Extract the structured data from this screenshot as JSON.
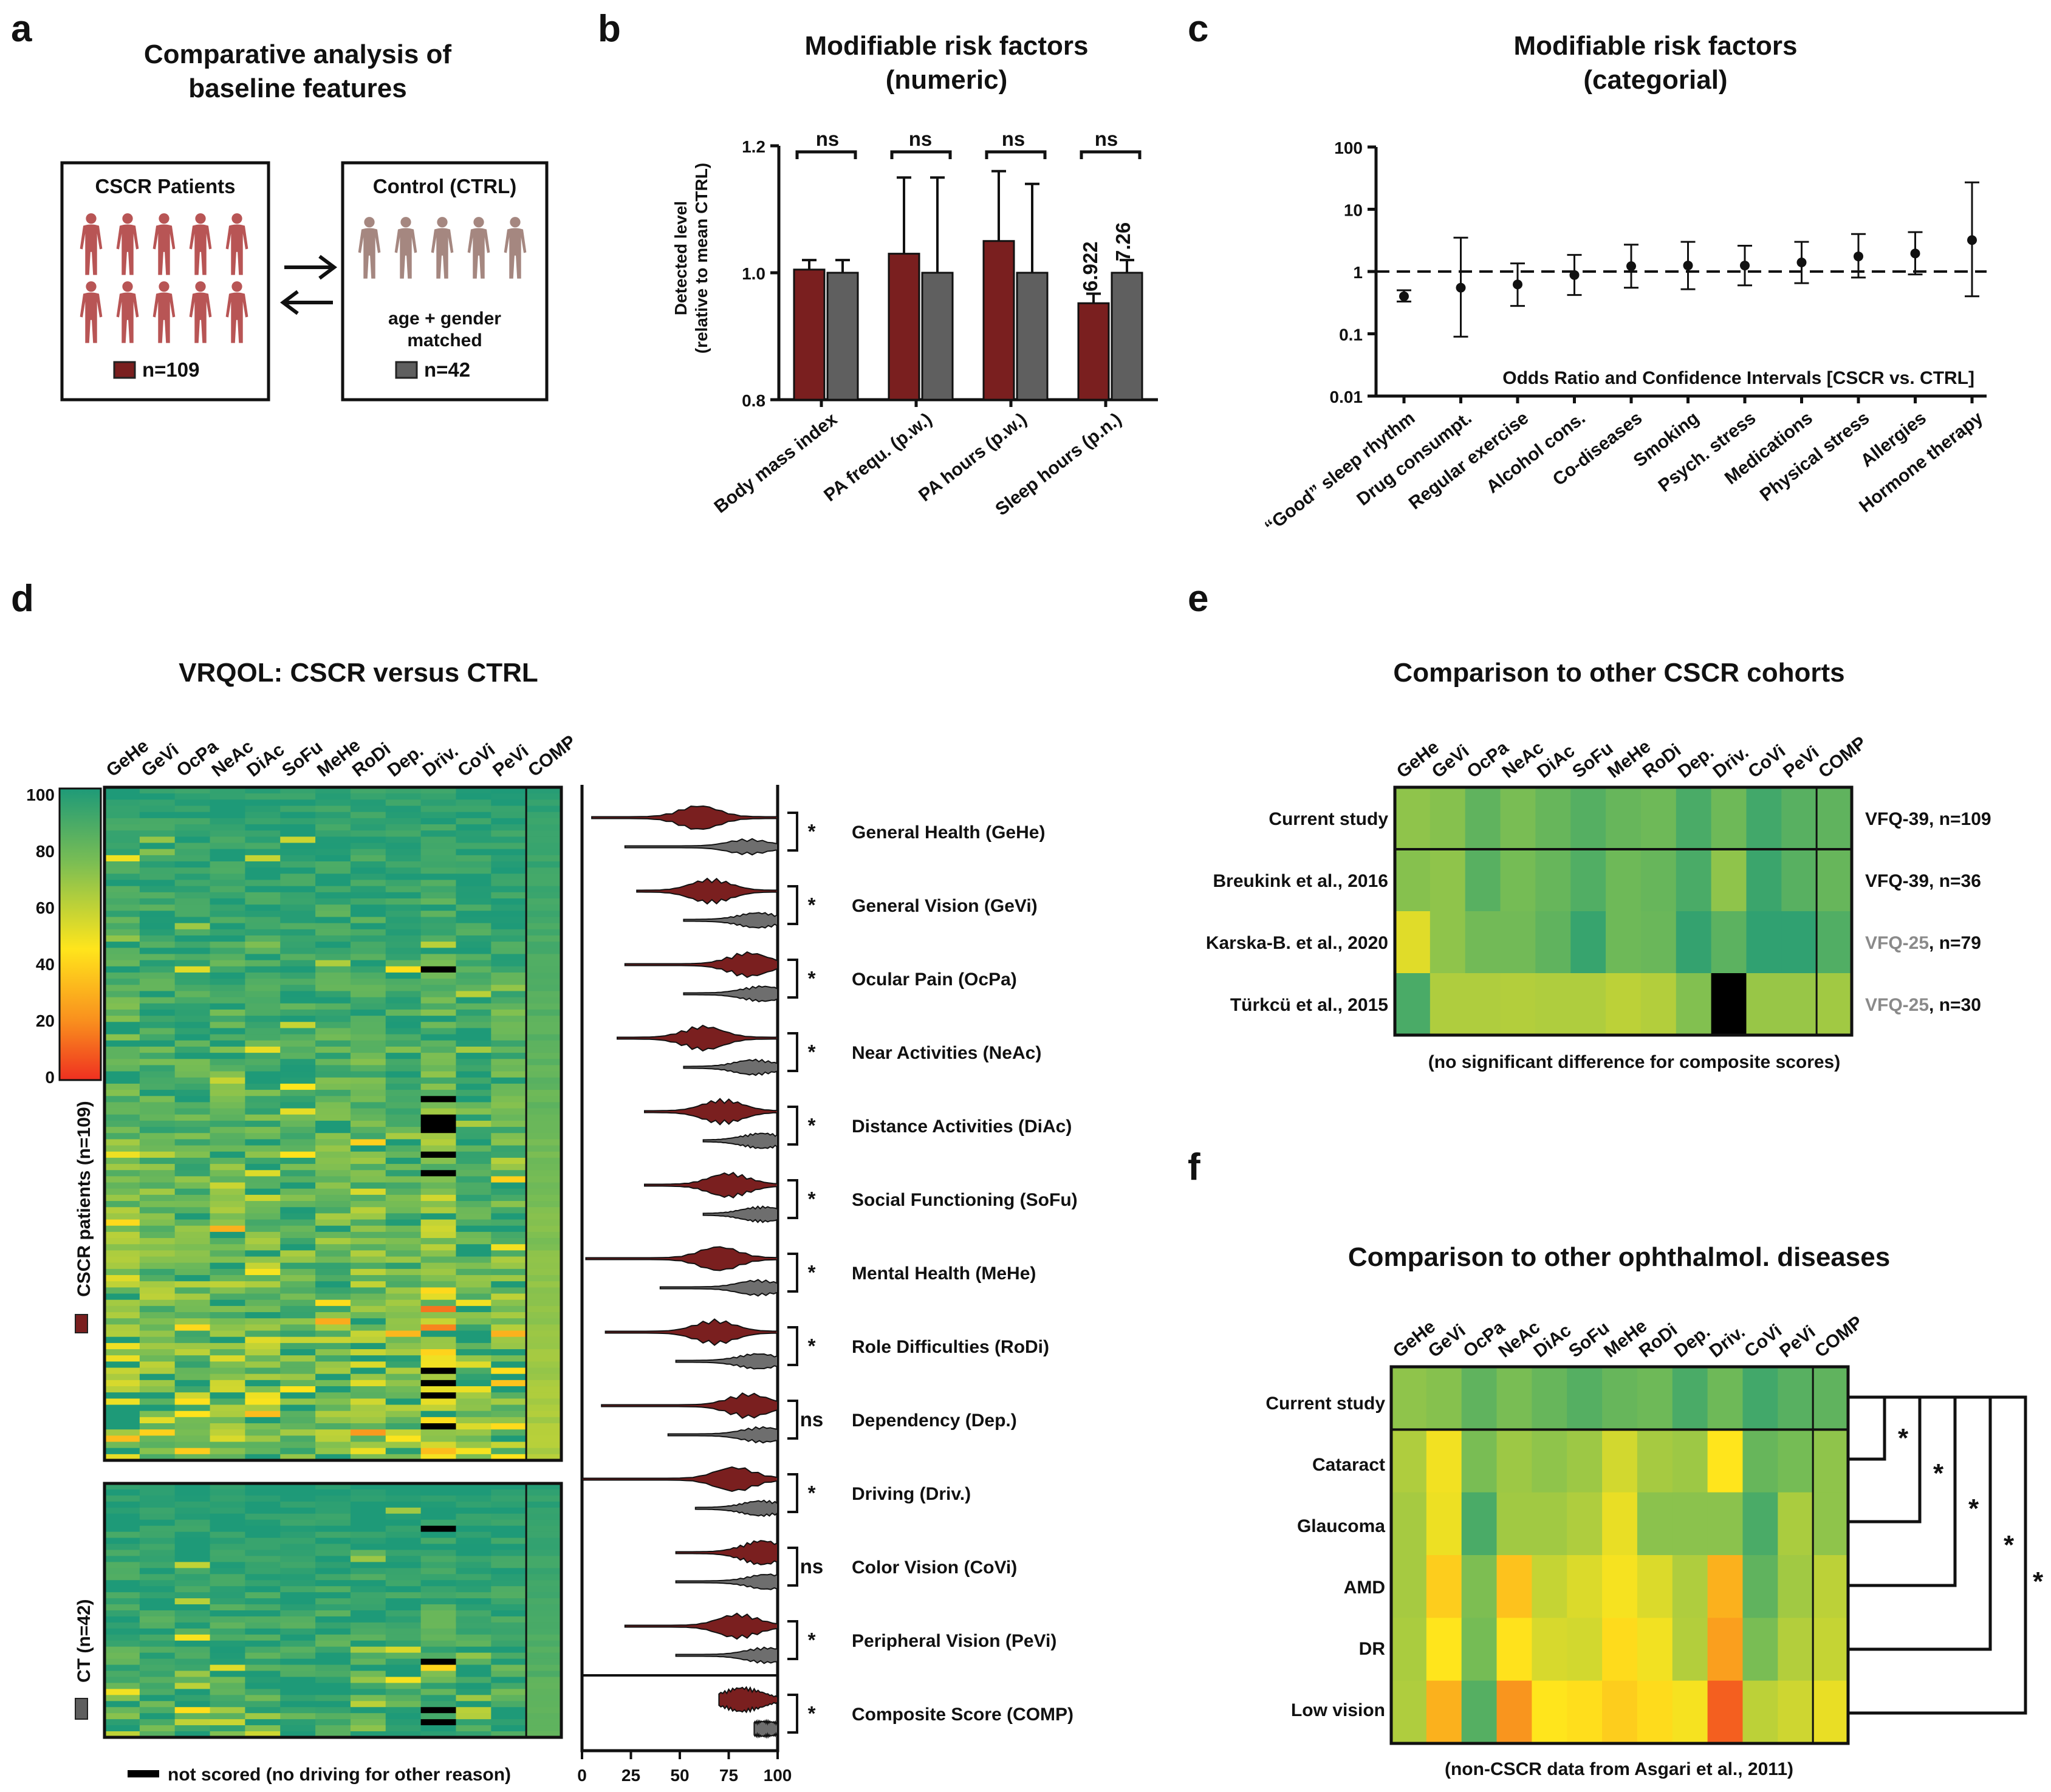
{
  "panel_letters": {
    "a": "a",
    "b": "b",
    "c": "c",
    "d": "d",
    "e": "e",
    "f": "f"
  },
  "colors": {
    "cscr": "#7a1f1f",
    "ctrl": "#5f5f5f",
    "figure_text": "#111111"
  },
  "panel_a": {
    "title_line1": "Comparative analysis of",
    "title_line2": "baseline features",
    "left_box_title": "CSCR Patients",
    "left_legend": "n=109",
    "right_box_title": "Control (CTRL)",
    "right_note_line1": "age + gender",
    "right_note_line2": "matched",
    "right_legend": "n=42",
    "icons": {
      "patient": "person-icon",
      "exchange": "double-arrow-icon"
    }
  },
  "panel_b": {
    "title_line1": "Modifiable risk factors",
    "title_line2": "(numeric)",
    "ylabel_line1": "Detected level",
    "ylabel_line2": "(relative to mean CTRL)",
    "sig": [
      "ns",
      "ns",
      "ns",
      "ns"
    ],
    "bar_labels": [
      "6.922",
      "7.26"
    ]
  },
  "panel_c": {
    "title_line1": "Modifiable risk factors",
    "title_line2": "(categorial)",
    "inner_label": "Odds Ratio and Confidence Intervals [CSCR vs. CTRL]"
  },
  "panel_d": {
    "title": "VRQOL: CSCR versus CTRL",
    "columns": [
      "GeHe",
      "GeVi",
      "OcPa",
      "NeAc",
      "DiAc",
      "SoFu",
      "MeHe",
      "RoDi",
      "Dep.",
      "Driv.",
      "CoVi",
      "PeVi",
      "COMP"
    ],
    "colorbar_ticks": [
      "100",
      "80",
      "60",
      "40",
      "20",
      "0"
    ],
    "group_cscr": "CSCR patients (n=109)",
    "group_ct": "CT (n=42)",
    "not_scored": "not scored (no driving for other reason)",
    "violin_axis": [
      "0",
      "25",
      "50",
      "75",
      "100"
    ],
    "subscales": [
      {
        "name": "General Health (GeHe)",
        "sig": "*"
      },
      {
        "name": "General Vision (GeVi)",
        "sig": "*"
      },
      {
        "name": "Ocular Pain (OcPa)",
        "sig": "*"
      },
      {
        "name": "Near Activities (NeAc)",
        "sig": "*"
      },
      {
        "name": "Distance Activities (DiAc)",
        "sig": "*"
      },
      {
        "name": "Social Functioning (SoFu)",
        "sig": "*"
      },
      {
        "name": "Mental Health (MeHe)",
        "sig": "*"
      },
      {
        "name": "Role Difficulties (RoDi)",
        "sig": "*"
      },
      {
        "name": "Dependency (Dep.)",
        "sig": "ns"
      },
      {
        "name": "Driving (Driv.)",
        "sig": "*"
      },
      {
        "name": "Color Vision (CoVi)",
        "sig": "ns"
      },
      {
        "name": "Peripheral Vision (PeVi)",
        "sig": "*"
      },
      {
        "name": "Composite Score (COMP)",
        "sig": "*"
      }
    ]
  },
  "panel_e": {
    "title": "Comparison to other CSCR cohorts",
    "footnote": "(no significant difference for composite scores)",
    "rows": [
      {
        "label": "Current study",
        "right": "VFQ-39, n=109",
        "right_grey": ""
      },
      {
        "label": "Breukink et al., 2016",
        "right": "VFQ-39, n=36",
        "right_grey": ""
      },
      {
        "label": "Karska-B. et al., 2020",
        "right": ", n=79",
        "right_grey": "VFQ-25"
      },
      {
        "label": "Türkcü et al., 2015",
        "right": ", n=30",
        "right_grey": "VFQ-25"
      }
    ]
  },
  "panel_f": {
    "title": "Comparison to other ophthalmol. diseases",
    "footnote": "(non-CSCR data from Asgari et al., 2011)",
    "rows": [
      "Current study",
      "Cataract",
      "Glaucoma",
      "AMD",
      "DR",
      "Low vision"
    ],
    "sig": [
      "*",
      "*",
      "*",
      "*",
      "*"
    ]
  },
  "chart_data": [
    {
      "type": "bar",
      "panel": "b",
      "categories": [
        "Body mass index",
        "PA frequ. (p.w.)",
        "PA hours (p.w.)",
        "Sleep hours (p.n.)"
      ],
      "series": [
        {
          "name": "CSCR Patients",
          "values": [
            1.005,
            1.03,
            1.05,
            0.952
          ],
          "err": [
            0.015,
            0.12,
            0.11,
            0.015
          ]
        },
        {
          "name": "Control (CTRL)",
          "values": [
            1.0,
            1.0,
            1.0,
            1.0
          ],
          "err": [
            0.02,
            0.15,
            0.14,
            0.02
          ]
        }
      ],
      "ylim": [
        0.8,
        1.2
      ],
      "yticks": [
        "0.8",
        "1.0",
        "1.2"
      ]
    },
    {
      "type": "scatter",
      "panel": "c",
      "categories": [
        "“Good” sleep rhythm",
        "Drug consumpt.",
        "Regular exercise",
        "Alcohol cons.",
        "Co-diseases",
        "Smoking",
        "Psych. stress",
        "Medications",
        "Physical stress",
        "Allergies",
        "Hormone therapy"
      ],
      "or": [
        0.4,
        0.55,
        0.62,
        0.88,
        1.22,
        1.25,
        1.25,
        1.4,
        1.75,
        1.95,
        3.2
      ],
      "ci_low": [
        0.33,
        0.09,
        0.28,
        0.42,
        0.55,
        0.52,
        0.6,
        0.65,
        0.8,
        0.9,
        0.4
      ],
      "ci_high": [
        0.5,
        3.5,
        1.35,
        1.85,
        2.7,
        3.0,
        2.6,
        3.0,
        4.0,
        4.3,
        27
      ],
      "yticks": [
        "0.01",
        "0.1",
        "1",
        "10",
        "100"
      ],
      "reference_line": 1
    },
    {
      "type": "heatmap",
      "panel": "e",
      "columns": [
        "GeHe",
        "GeVi",
        "OcPa",
        "NeAc",
        "DiAc",
        "SoFu",
        "MeHe",
        "RoDi",
        "Dep.",
        "Driv.",
        "CoVi",
        "PeVi",
        "COMP"
      ],
      "rows": [
        "Current study",
        "Breukink et al., 2016",
        "Karska-B. et al., 2020",
        "Türkcü et al., 2015"
      ],
      "values": [
        [
          70,
          72,
          82,
          75,
          80,
          85,
          80,
          78,
          88,
          78,
          90,
          84,
          82
        ],
        [
          72,
          70,
          84,
          76,
          80,
          86,
          78,
          80,
          88,
          70,
          92,
          84,
          80
        ],
        [
          52,
          70,
          77,
          77,
          82,
          93,
          78,
          79,
          94,
          83,
          95,
          95,
          86
        ],
        [
          88,
          63,
          63,
          62,
          63,
          63,
          60,
          62,
          73,
          null,
          68,
          68,
          66
        ]
      ],
      "scale": [
        0,
        100
      ]
    },
    {
      "type": "heatmap",
      "panel": "f",
      "columns": [
        "GeHe",
        "GeVi",
        "OcPa",
        "NeAc",
        "DiAc",
        "SoFu",
        "MeHe",
        "RoDi",
        "Dep.",
        "Driv.",
        "CoVi",
        "PeVi",
        "COMP"
      ],
      "rows": [
        "Current study",
        "Cataract",
        "Glaucoma",
        "AMD",
        "DR",
        "Low vision"
      ],
      "values": [
        [
          70,
          72,
          82,
          75,
          80,
          85,
          80,
          78,
          88,
          78,
          90,
          84,
          82
        ],
        [
          63,
          48,
          75,
          67,
          70,
          67,
          55,
          65,
          67,
          45,
          80,
          76,
          70
        ],
        [
          65,
          49,
          88,
          66,
          66,
          63,
          50,
          71,
          71,
          71,
          88,
          64,
          70
        ],
        [
          65,
          38,
          74,
          35,
          58,
          53,
          47,
          53,
          63,
          30,
          82,
          66,
          60
        ],
        [
          64,
          45,
          76,
          44,
          54,
          55,
          42,
          48,
          62,
          25,
          75,
          62,
          58
        ],
        [
          63,
          30,
          85,
          22,
          45,
          43,
          38,
          42,
          47,
          10,
          60,
          56,
          50
        ]
      ],
      "scale": [
        0,
        100
      ]
    }
  ]
}
